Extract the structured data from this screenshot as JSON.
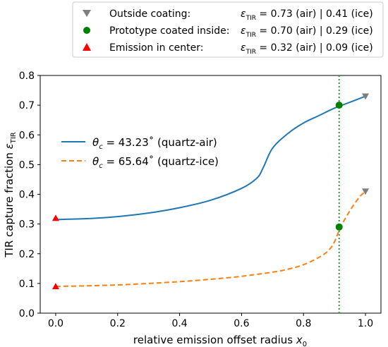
{
  "chart_data": {
    "type": "line",
    "xlabel": "relative emission offset radius x₀",
    "ylabel": "TIR capture fraction ε_TIR",
    "xlim": [
      -0.05,
      1.05
    ],
    "ylim": [
      0.0,
      0.8
    ],
    "xticks": [
      "0.0",
      "0.2",
      "0.4",
      "0.6",
      "0.8",
      "1.0"
    ],
    "yticks": [
      "0.0",
      "0.1",
      "0.2",
      "0.3",
      "0.4",
      "0.5",
      "0.6",
      "0.7",
      "0.8"
    ],
    "grid": false,
    "series": [
      {
        "name": "θc = 43.23° (quartz-air)",
        "style": "solid",
        "color": "#1f77b4",
        "x": [
          0.0,
          0.1,
          0.2,
          0.3,
          0.4,
          0.5,
          0.6,
          0.65,
          0.67,
          0.7,
          0.75,
          0.8,
          0.85,
          0.9,
          0.95,
          1.0
        ],
        "y": [
          0.315,
          0.318,
          0.325,
          0.337,
          0.355,
          0.38,
          0.42,
          0.455,
          0.49,
          0.555,
          0.605,
          0.64,
          0.665,
          0.69,
          0.71,
          0.73
        ]
      },
      {
        "name": "θc = 65.64° (quartz-ice)",
        "style": "dashed",
        "color": "#ff7f0e",
        "x": [
          0.0,
          0.1,
          0.2,
          0.3,
          0.4,
          0.5,
          0.6,
          0.7,
          0.75,
          0.8,
          0.85,
          0.88,
          0.9,
          0.92,
          0.95,
          0.98,
          1.0
        ],
        "y": [
          0.09,
          0.092,
          0.095,
          0.1,
          0.106,
          0.114,
          0.124,
          0.138,
          0.148,
          0.163,
          0.188,
          0.21,
          0.24,
          0.29,
          0.345,
          0.39,
          0.41
        ]
      }
    ],
    "vline": {
      "x": 0.915,
      "color": "#2ca02c",
      "style": "dotted"
    },
    "markers": [
      {
        "label": "Outside coating",
        "shape": "triangle-down",
        "color": "#7f7f7f",
        "x": [
          1.0,
          1.0
        ],
        "y": [
          0.73,
          0.41
        ]
      },
      {
        "label": "Prototype coated inside",
        "shape": "circle",
        "color": "#008000",
        "x": [
          0.915,
          0.915
        ],
        "y": [
          0.7,
          0.29
        ]
      },
      {
        "label": "Emission in center",
        "shape": "triangle-up",
        "color": "#ff0000",
        "x": [
          0.0,
          0.0
        ],
        "y": [
          0.32,
          0.09
        ]
      }
    ],
    "legend_top": [
      {
        "label": "Outside coating:",
        "eps": "ε",
        "sub": "TIR",
        "values": " = 0.73 (air) | 0.41 (ice)"
      },
      {
        "label": "Prototype coated inside:",
        "eps": "ε",
        "sub": "TIR",
        "values": " = 0.70 (air) | 0.29 (ice)"
      },
      {
        "label": "Emission in center:",
        "eps": "ε",
        "sub": "TIR",
        "values": " = 0.32 (air) | 0.09 (ice)"
      }
    ],
    "legend_inner": [
      {
        "theta": "θ",
        "sub": "c",
        "text": " = 43.23˚ (quartz-air)"
      },
      {
        "theta": "θ",
        "sub": "c",
        "text": " = 65.64˚ (quartz-ice)"
      }
    ],
    "axis_text": {
      "xlabel_main": "relative emission offset radius ",
      "xlabel_var": "x",
      "xlabel_sub": "0",
      "ylabel_main": "TIR capture fraction ",
      "ylabel_var": "ε",
      "ylabel_sub": "TIR"
    },
    "legend_placement": "top (outside) and center-left (inside)"
  }
}
